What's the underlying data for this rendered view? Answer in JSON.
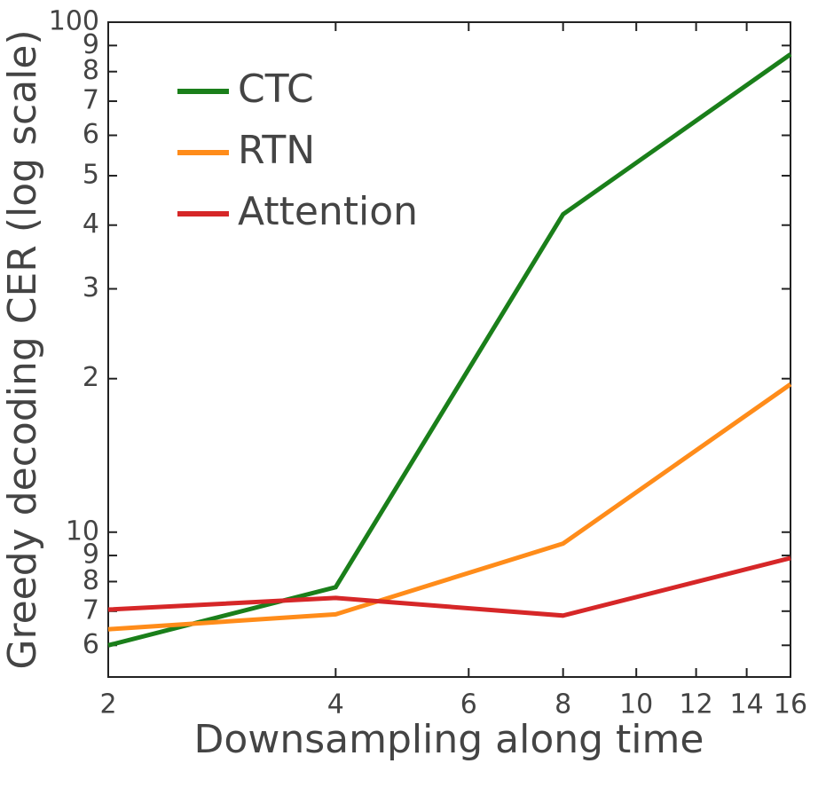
{
  "chart_data": {
    "type": "line",
    "x_label": "Downsampling along time",
    "y_label": "Greedy decoding CER (log scale)",
    "x": [
      2,
      4,
      8,
      16
    ],
    "xscale": "log",
    "yscale": "log",
    "xlim": [
      2,
      16
    ],
    "xticks": [
      2,
      4,
      6,
      8,
      10,
      12,
      14,
      16
    ],
    "ylim": [
      5.2,
      100
    ],
    "yticks": [
      6,
      7,
      8,
      9,
      10,
      {
        "value": 20,
        "label": "2"
      },
      {
        "value": 30,
        "label": "3"
      },
      {
        "value": 40,
        "label": "4"
      },
      {
        "value": 50,
        "label": "5"
      },
      {
        "value": 60,
        "label": "6"
      },
      {
        "value": 70,
        "label": "7"
      },
      {
        "value": 80,
        "label": "8"
      },
      {
        "value": 90,
        "label": "9"
      },
      100
    ],
    "legend": "upper left",
    "series": [
      {
        "name": "CTC",
        "color": "#1a7f1a",
        "values": [
          6.0,
          7.8,
          42,
          86.5
        ]
      },
      {
        "name": "RTN",
        "color": "#ff8c1a",
        "values": [
          6.45,
          6.9,
          9.5,
          19.5
        ]
      },
      {
        "name": "Attention",
        "color": "#d62728",
        "values": [
          7.05,
          7.43,
          6.86,
          8.9
        ]
      }
    ]
  }
}
